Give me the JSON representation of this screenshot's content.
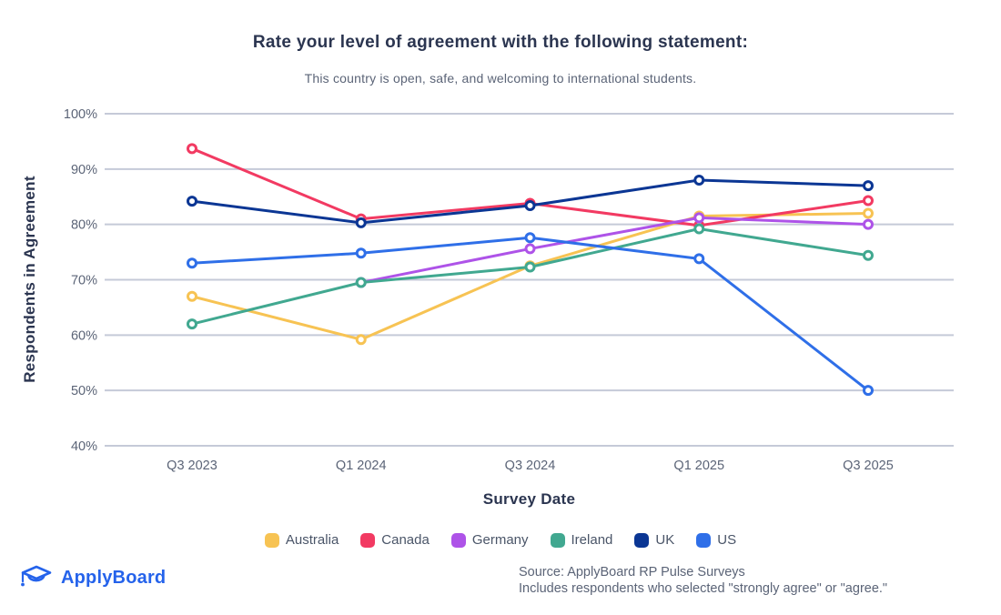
{
  "header": {
    "title": "Rate your level of agreement with the following statement:",
    "subtitle": "This country is open, safe, and welcoming to international students."
  },
  "chart_data": {
    "type": "line",
    "x": [
      "Q3 2023",
      "Q1 2024",
      "Q3 2024",
      "Q1 2025",
      "Q3 2025"
    ],
    "xlabel": "Survey Date",
    "ylabel": "Respondents in Agreement",
    "ylim": [
      40,
      100
    ],
    "y_ticks": [
      100,
      90,
      80,
      70,
      60,
      50,
      40
    ],
    "y_tick_suffix": "%",
    "grid": true,
    "legend_position": "bottom",
    "series": [
      {
        "name": "Australia",
        "color": "#F7C353",
        "values": [
          67,
          59.2,
          72.5,
          81.5,
          82
        ]
      },
      {
        "name": "Canada",
        "color": "#F23A62",
        "values": [
          93.7,
          81,
          83.8,
          79.8,
          84.3
        ]
      },
      {
        "name": "Germany",
        "color": "#AE53E8",
        "values": [
          null,
          69.5,
          75.6,
          81.2,
          80
        ]
      },
      {
        "name": "Ireland",
        "color": "#41A890",
        "values": [
          62,
          69.5,
          72.3,
          79.2,
          74.4
        ]
      },
      {
        "name": "UK",
        "color": "#0B3694",
        "values": [
          84.2,
          80.3,
          83.4,
          88,
          87
        ]
      },
      {
        "name": "US",
        "color": "#2F6FE8",
        "values": [
          73,
          74.8,
          77.6,
          73.8,
          50
        ]
      }
    ]
  },
  "footer": {
    "logo_text": "ApplyBoard",
    "source_line1": "Source: ApplyBoard RP Pulse Surveys",
    "source_line2": "Includes respondents who selected \"strongly agree\" or \"agree.\""
  },
  "colors": {
    "title_text": "#2B3550",
    "muted_text": "#5B6477",
    "grid_line": "#C5CAD8",
    "brand_blue": "#2563EB",
    "marker_fill": "#FFFFFF"
  }
}
